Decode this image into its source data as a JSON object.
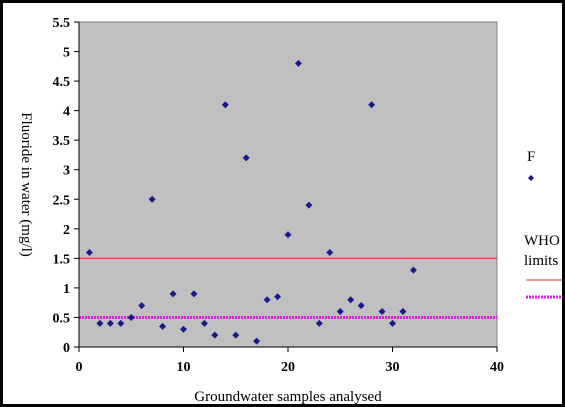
{
  "chart_data": {
    "type": "scatter",
    "title": "",
    "xlabel": "Groundwater samples analysed",
    "ylabel": "Fluoride in water (mg/l)",
    "xlim": [
      0,
      40
    ],
    "ylim": [
      0,
      5.5
    ],
    "x_ticks": [
      "0",
      "10",
      "20",
      "30",
      "40"
    ],
    "y_ticks": [
      "0",
      "0.5",
      "1",
      "1.5",
      "2",
      "2.5",
      "3",
      "3.5",
      "4",
      "4.5",
      "5",
      "5.5"
    ],
    "x_tick_values": [
      0,
      10,
      20,
      30,
      40
    ],
    "y_tick_values": [
      0,
      0.5,
      1,
      1.5,
      2,
      2.5,
      3,
      3.5,
      4,
      4.5,
      5,
      5.5
    ],
    "grid": false,
    "plot_background": "#c0c0c0",
    "legend_position": "right",
    "series": [
      {
        "name": "F",
        "color": "#1a1a8a",
        "marker": "diamond",
        "x": [
          1,
          2,
          3,
          4,
          5,
          6,
          7,
          8,
          9,
          10,
          11,
          12,
          13,
          14,
          15,
          16,
          17,
          18,
          19,
          20,
          21,
          22,
          23,
          24,
          25,
          26,
          27,
          28,
          29,
          30,
          31,
          32
        ],
        "y": [
          1.6,
          0.4,
          0.4,
          0.4,
          0.5,
          0.7,
          2.5,
          0.35,
          0.9,
          0.3,
          0.9,
          0.4,
          0.2,
          4.1,
          0.2,
          3.2,
          0.1,
          0.8,
          0.85,
          1.9,
          4.8,
          2.4,
          0.4,
          1.6,
          0.6,
          0.8,
          0.7,
          4.1,
          0.6,
          0.4,
          0.6,
          1.3
        ]
      }
    ],
    "reference_lines": [
      {
        "name": "WHO limits",
        "y": 1.5,
        "color": "#e8302a",
        "style": "solid"
      },
      {
        "name": "WHO limits",
        "y": 0.5,
        "color": "#e020e0",
        "style": "dotted"
      }
    ],
    "legend": {
      "series_label": "F",
      "limits_label_line1": "WHO",
      "limits_label_line2": "limits"
    }
  }
}
